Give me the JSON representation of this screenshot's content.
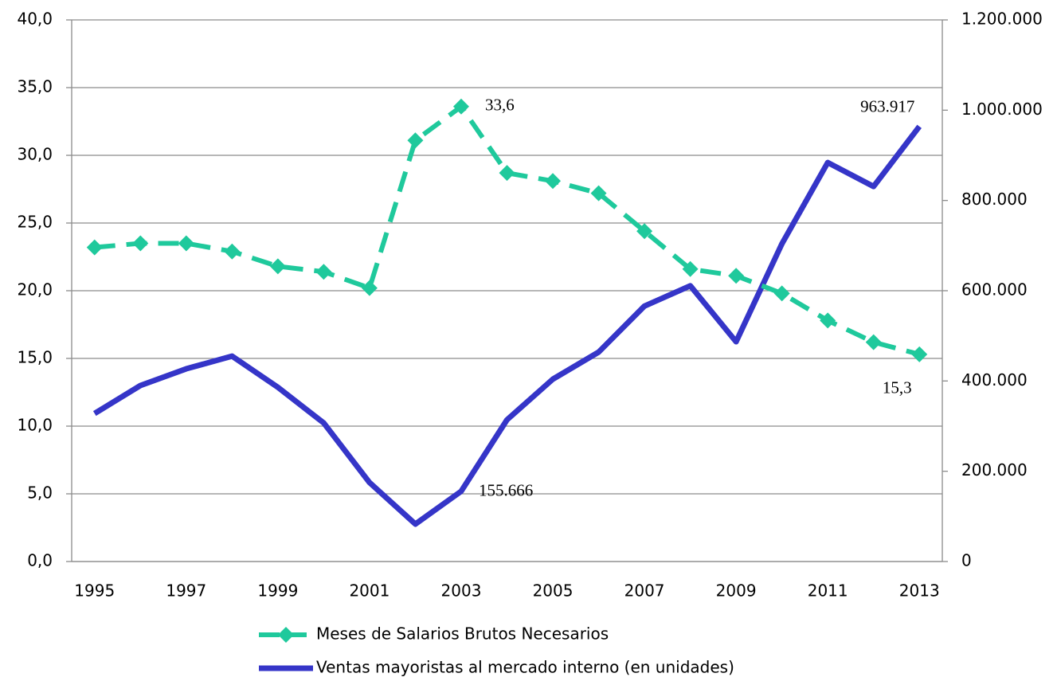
{
  "chart_data": {
    "type": "line",
    "categories": [
      "1995",
      null,
      "1997",
      null,
      "1999",
      null,
      "2001",
      null,
      "2003",
      null,
      "2005",
      null,
      "2007",
      null,
      "2009",
      null,
      "2011",
      null,
      "2013"
    ],
    "series": [
      {
        "name": "Meses de Salarios Brutos Necesarios",
        "color": "#1fc99c",
        "axis": "y",
        "values": [
          23.2,
          23.5,
          23.5,
          22.9,
          21.8,
          21.4,
          20.2,
          31.1,
          33.6,
          28.7,
          28.1,
          27.2,
          24.4,
          21.6,
          21.1,
          19.8,
          17.8,
          16.2,
          15.3
        ],
        "value_labels": [
          null,
          null,
          null,
          null,
          null,
          null,
          null,
          null,
          "33,6",
          null,
          null,
          null,
          null,
          null,
          null,
          null,
          null,
          null,
          "15,3"
        ]
      },
      {
        "name": "Ventas mayoristas al mercado interno (en unidades)",
        "color": "#3535c8",
        "axis": "y2",
        "values": [
          328000,
          390000,
          427000,
          455000,
          386000,
          307000,
          175000,
          83000,
          155666,
          314000,
          404000,
          464000,
          566000,
          611000,
          487000,
          704000,
          884000,
          831000,
          963917
        ],
        "value_labels": [
          null,
          null,
          null,
          null,
          null,
          null,
          null,
          null,
          "155.666",
          null,
          null,
          null,
          null,
          null,
          null,
          null,
          null,
          null,
          "963.917"
        ]
      }
    ],
    "ylim": [
      0,
      40
    ],
    "yticks": [
      {
        "value": 0,
        "label": "0,0"
      },
      {
        "value": 5,
        "label": "5,0"
      },
      {
        "value": 10,
        "label": "10,0"
      },
      {
        "value": 15,
        "label": "15,0"
      },
      {
        "value": 20,
        "label": "20,0"
      },
      {
        "value": 25,
        "label": "25,0"
      },
      {
        "value": 30,
        "label": "30,0"
      },
      {
        "value": 35,
        "label": "35,0"
      },
      {
        "value": 40,
        "label": "40,0"
      }
    ],
    "y2lim": [
      0,
      1200000
    ],
    "y2ticks": [
      0,
      {
        "value": 200000,
        "label": "200.000"
      },
      {
        "value": 400000,
        "label": "400.000"
      },
      {
        "value": 600000,
        "label": "600.000"
      },
      {
        "value": 800000,
        "label": "800.000"
      },
      {
        "value": 1000000,
        "label": "1.000.000"
      },
      {
        "value": 1200000,
        "label": "1.200.000"
      }
    ],
    "grid": true,
    "legend": "bottom"
  }
}
